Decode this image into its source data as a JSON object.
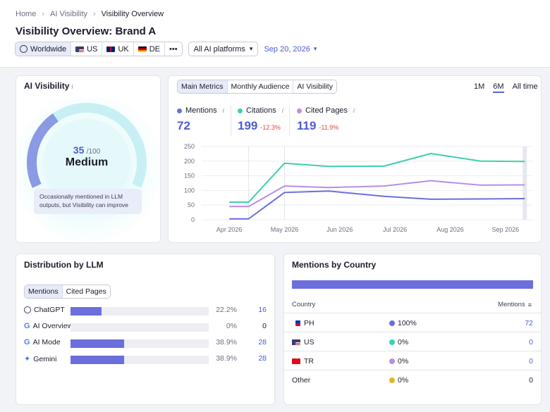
{
  "breadcrumb": [
    "Home",
    "AI Visibility",
    "Visibility Overview"
  ],
  "page_title": "Visibility Overview: Brand A",
  "regions": [
    "Worldwide",
    "US",
    "UK",
    "DE"
  ],
  "more_label": "•••",
  "platform_select": "All AI platforms",
  "date_select": "Sep 20, 2026",
  "ai_visibility": {
    "title": "AI Visibility",
    "info": "i",
    "score": "35",
    "score_max": "/100",
    "score_fraction": 0.35,
    "level": "Medium",
    "note": "Occasionally mentioned in LLM outputs, but Visibility can improve"
  },
  "metrics_panel": {
    "tabs": [
      "Main Metrics",
      "Monthly Audience",
      "AI Visibility"
    ],
    "ranges": [
      "1M",
      "6M",
      "All time"
    ],
    "metrics": [
      {
        "label": "Mentions",
        "value": "72",
        "delta": "",
        "color": "#6a6fdc"
      },
      {
        "label": "Citations",
        "value": "199",
        "delta": "-12.3%",
        "color": "#3ecfae"
      },
      {
        "label": "Cited Pages",
        "value": "119",
        "delta": "-11.9%",
        "color": "#b98de8"
      }
    ]
  },
  "chart_data": {
    "type": "line",
    "x": [
      "Apr 2026",
      "May 2026",
      "Jun 2026",
      "Jul 2026",
      "Aug 2026",
      "Sep 2026"
    ],
    "y_ticks": [
      "250",
      "200",
      "150",
      "100",
      "50",
      "0"
    ],
    "ylim": [
      0,
      250
    ],
    "grid": true,
    "series": [
      {
        "name": "Citations",
        "color": "#3ecfae",
        "points": [
          [
            0.0,
            60
          ],
          [
            0.35,
            60
          ],
          [
            1.0,
            193
          ],
          [
            1.8,
            182
          ],
          [
            2.8,
            183
          ],
          [
            3.65,
            226
          ],
          [
            4.55,
            200
          ],
          [
            5.35,
            199
          ]
        ]
      },
      {
        "name": "Cited Pages",
        "color": "#b98de8",
        "points": [
          [
            0.0,
            45
          ],
          [
            0.35,
            45
          ],
          [
            1.0,
            115
          ],
          [
            1.8,
            110
          ],
          [
            2.8,
            115
          ],
          [
            3.65,
            133
          ],
          [
            4.55,
            118
          ],
          [
            5.35,
            119
          ]
        ]
      },
      {
        "name": "Mentions",
        "color": "#6a6fdc",
        "points": [
          [
            0.0,
            3
          ],
          [
            0.35,
            3
          ],
          [
            1.0,
            93
          ],
          [
            1.8,
            98
          ],
          [
            2.8,
            80
          ],
          [
            3.65,
            70
          ],
          [
            4.55,
            71
          ],
          [
            5.35,
            72
          ]
        ]
      }
    ]
  },
  "distribution": {
    "title": "Distribution by LLM",
    "tabs": [
      "Mentions",
      "Cited Pages"
    ],
    "rows": [
      {
        "name": "ChatGPT",
        "pct": "22.2%",
        "count": "16",
        "fraction": 0.222
      },
      {
        "name": "AI Overview",
        "pct": "0%",
        "count": "0",
        "fraction": 0
      },
      {
        "name": "AI Mode",
        "pct": "38.9%",
        "count": "28",
        "fraction": 0.389
      },
      {
        "name": "Gemini",
        "pct": "38.9%",
        "count": "28",
        "fraction": 0.389
      }
    ]
  },
  "country": {
    "title": "Mentions by Country",
    "col_country": "Country",
    "col_mentions": "Mentions",
    "rows": [
      {
        "name": "PH",
        "pct": "100%",
        "count": "72",
        "dot": "#6a6fdc"
      },
      {
        "name": "US",
        "pct": "0%",
        "count": "0",
        "dot": "#3ecfae"
      },
      {
        "name": "TR",
        "pct": "0%",
        "count": "0",
        "dot": "#b98de8"
      },
      {
        "name": "Other",
        "pct": "0%",
        "count": "0",
        "dot": "#e6b422"
      }
    ]
  }
}
